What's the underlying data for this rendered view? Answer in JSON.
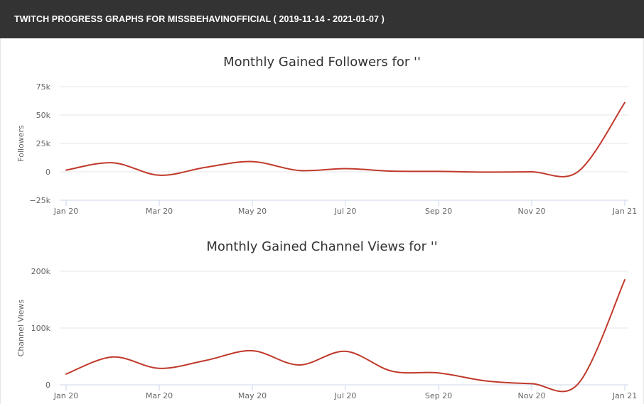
{
  "header": {
    "title": "TWITCH PROGRESS GRAPHS FOR MISSBEHAVINOFFICIAL ( 2019-11-14 - 2021-01-07 )"
  },
  "colors": {
    "header_bg": "#333333",
    "line": "#c0392b",
    "grid": "#e6e6e6"
  },
  "chart_data": [
    {
      "type": "line",
      "title": "Monthly Gained Followers for ''",
      "ylabel": "Followers",
      "xlabel": "",
      "x_ticks": [
        "Jan 20",
        "Mar 20",
        "May 20",
        "Jul 20",
        "Sep 20",
        "Nov 20",
        "Jan 21"
      ],
      "y_ticks": [
        "75k",
        "50k",
        "25k",
        "0",
        "−25k"
      ],
      "ylim": [
        -25000,
        75000
      ],
      "grid": true,
      "series": [
        {
          "x": [
            "2020-01",
            "2020-02",
            "2020-03",
            "2020-04",
            "2020-05",
            "2020-06",
            "2020-07",
            "2020-08",
            "2020-09",
            "2020-10",
            "2020-11",
            "2020-12",
            "2021-01"
          ],
          "values": [
            1500,
            8000,
            -3000,
            4000,
            9000,
            1200,
            2800,
            600,
            400,
            -200,
            0,
            300,
            61000
          ]
        }
      ]
    },
    {
      "type": "line",
      "title": "Monthly Gained Channel Views for ''",
      "ylabel": "Channel Views",
      "xlabel": "",
      "x_ticks": [
        "Jan 20",
        "Mar 20",
        "May 20",
        "Jul 20",
        "Sep 20",
        "Nov 20",
        "Jan 21"
      ],
      "y_ticks": [
        "200k",
        "100k",
        "0"
      ],
      "ylim": [
        0,
        200000
      ],
      "grid": true,
      "series": [
        {
          "x": [
            "2020-01",
            "2020-02",
            "2020-03",
            "2020-04",
            "2020-05",
            "2020-06",
            "2020-07",
            "2020-08",
            "2020-09",
            "2020-10",
            "2020-11",
            "2020-12",
            "2021-01"
          ],
          "values": [
            19000,
            49000,
            29000,
            43000,
            60000,
            35000,
            59000,
            24000,
            21000,
            7000,
            2000,
            2000,
            185000
          ]
        }
      ]
    }
  ]
}
